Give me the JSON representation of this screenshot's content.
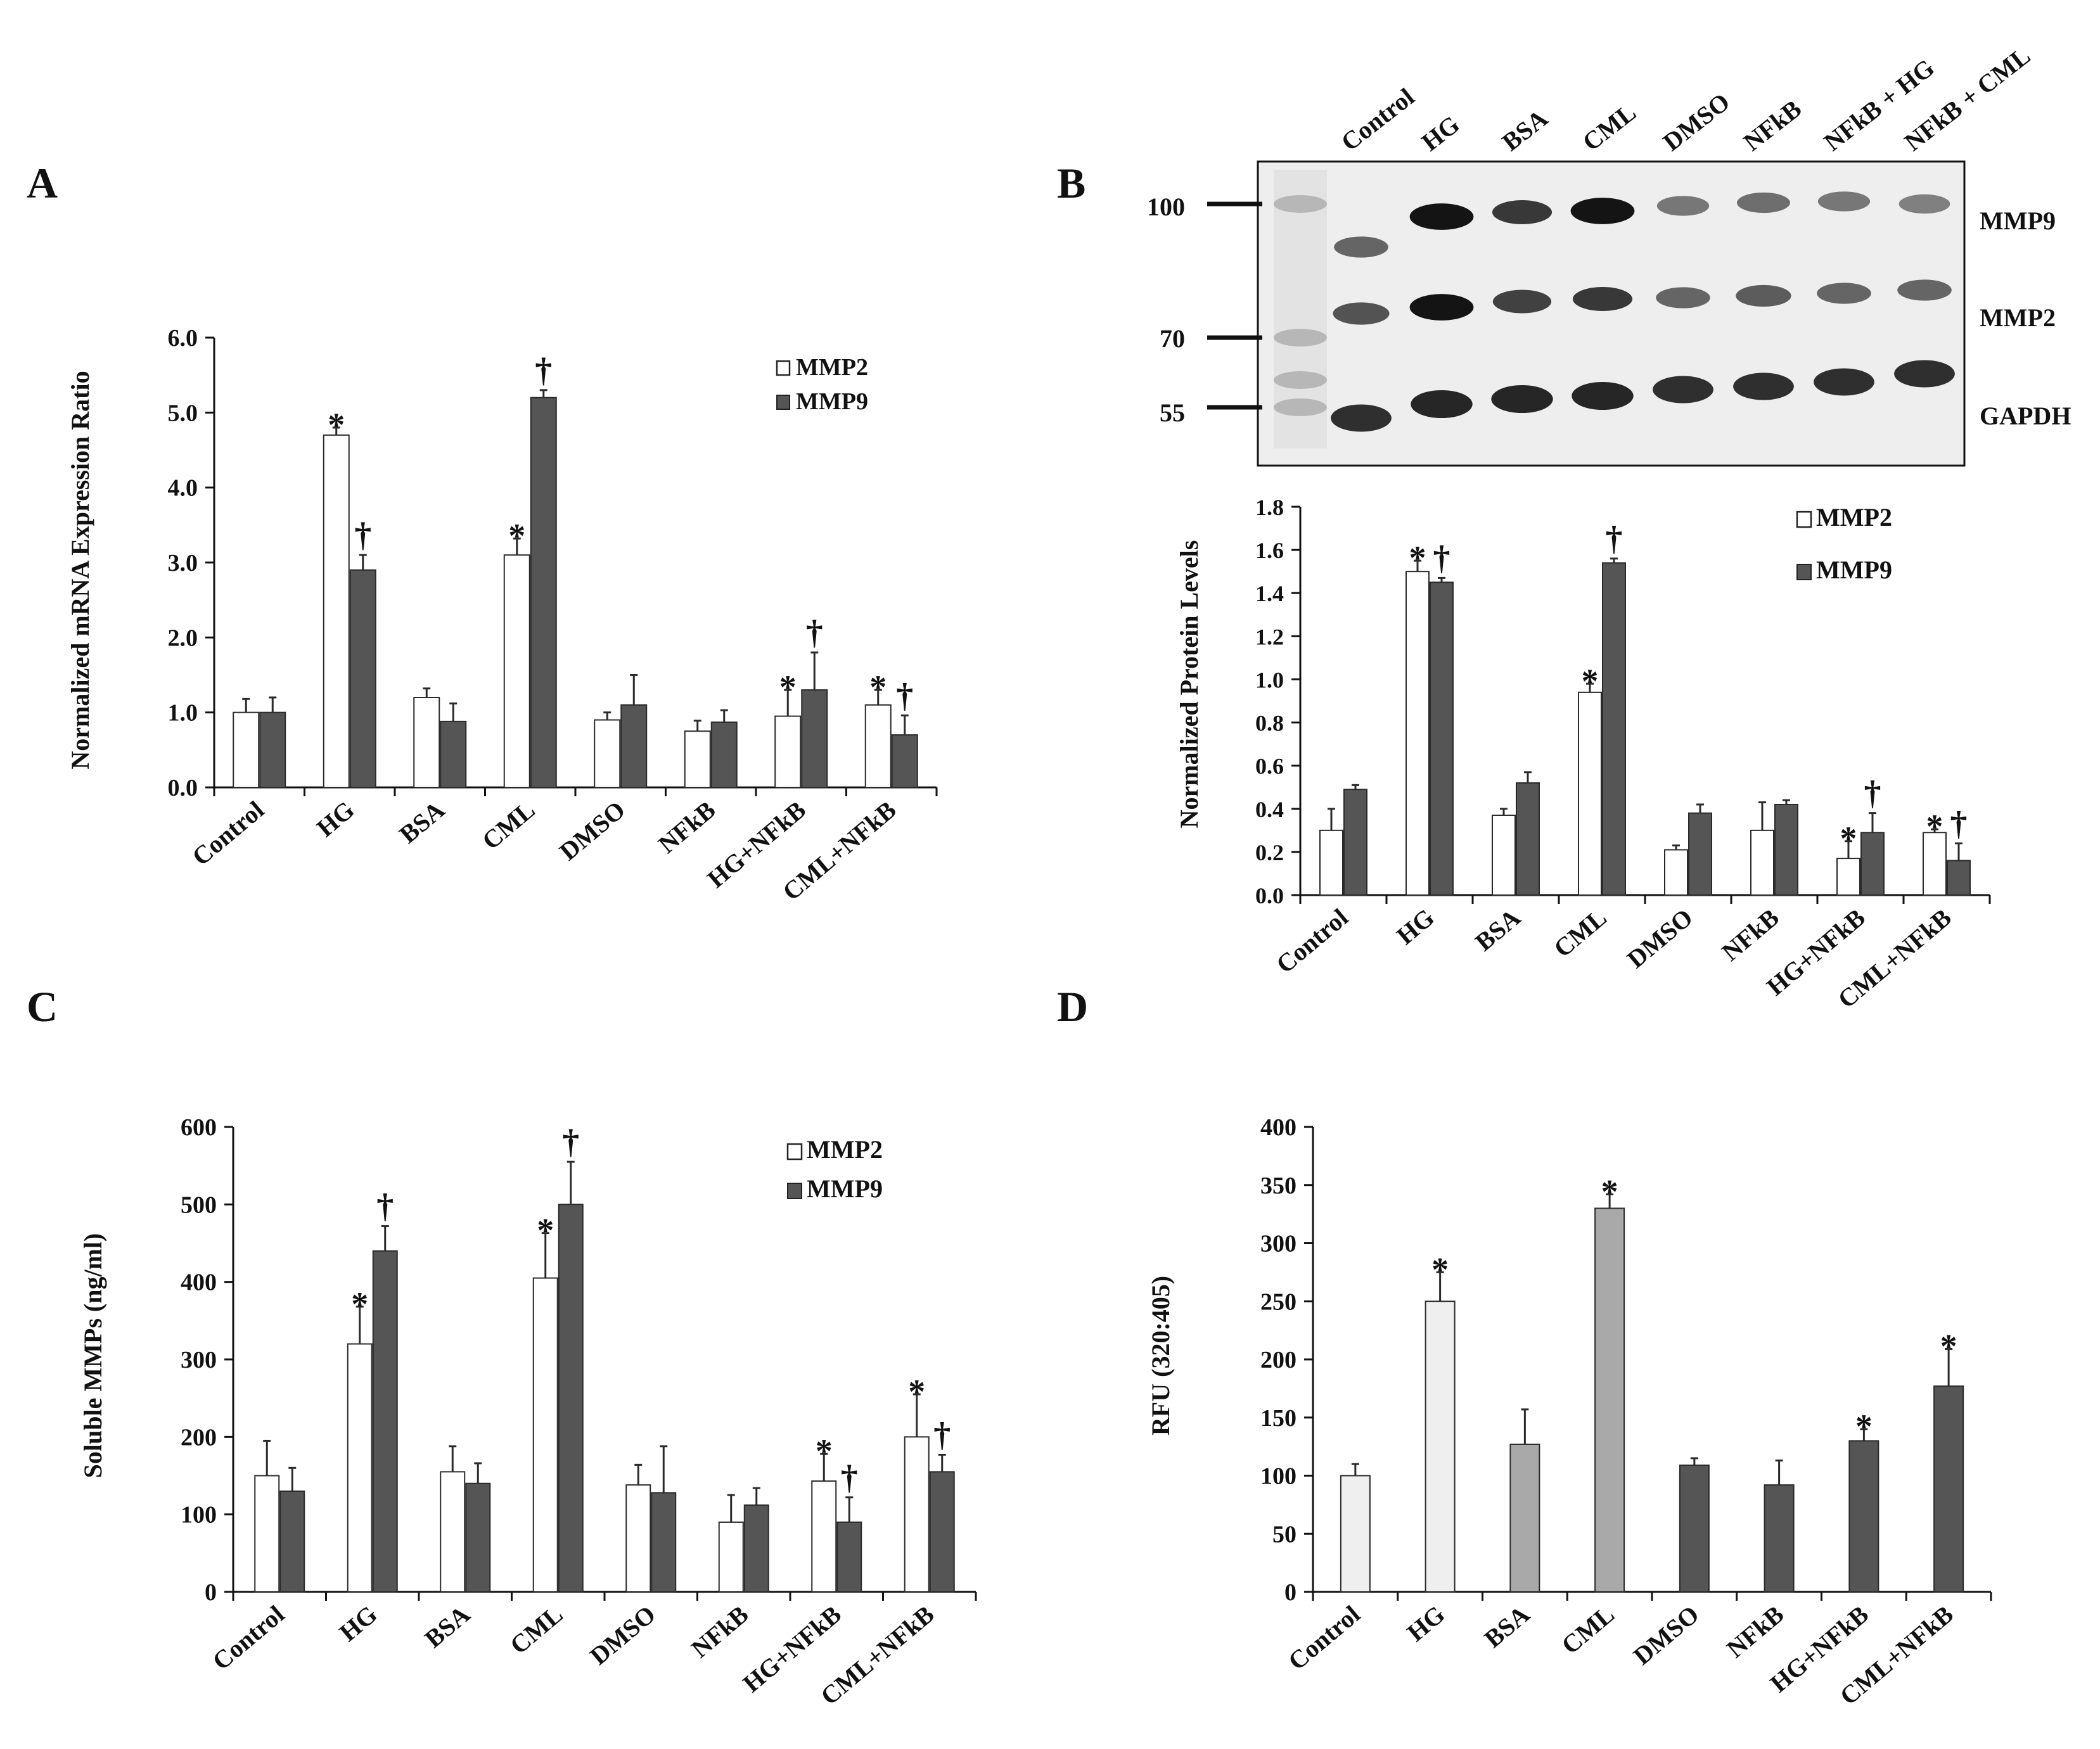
{
  "colors": {
    "white_bar": "#ffffff",
    "dark_bar": "#555555",
    "light_bar": "#efefef",
    "mid_bar": "#a9a9a9",
    "axis": "#111111"
  },
  "panels": {
    "a": "A",
    "b": "B",
    "c": "C",
    "d": "D"
  },
  "blot": {
    "lanes": [
      "Control",
      "HG",
      "BSA",
      "CML",
      "DMSO",
      "NFkB",
      "NFkB + HG",
      "NFkB + CML"
    ],
    "markers": [
      "100",
      "70",
      "55"
    ],
    "bands": [
      "MMP9",
      "MMP2",
      "GAPDH"
    ],
    "intensity": {
      "MMP9": [
        0.55,
        1.0,
        0.8,
        1.0,
        0.45,
        0.5,
        0.45,
        0.4
      ],
      "MMP2": [
        0.65,
        1.0,
        0.75,
        0.8,
        0.55,
        0.6,
        0.55,
        0.55
      ],
      "GAPDH": [
        0.85,
        0.9,
        0.9,
        0.9,
        0.85,
        0.85,
        0.85,
        0.85
      ]
    }
  },
  "chart_data": [
    {
      "id": "A",
      "type": "bar",
      "title": "",
      "xlabel": "",
      "ylabel": "Normalized mRNA Expression Ratio",
      "ylim": [
        0,
        6
      ],
      "yticks": [
        "0.0",
        "1.0",
        "2.0",
        "3.0",
        "4.0",
        "5.0",
        "6.0"
      ],
      "categories": [
        "Control",
        "HG",
        "BSA",
        "CML",
        "DMSO",
        "NFkB",
        "HG+NFkB",
        "CML+NFkB"
      ],
      "legend": {
        "placement": "top-right",
        "entries": [
          "MMP2",
          "MMP9"
        ]
      },
      "series": [
        {
          "name": "MMP2",
          "color": "white",
          "values": [
            1.0,
            4.7,
            1.2,
            3.1,
            0.9,
            0.75,
            0.95,
            1.1
          ],
          "errors": [
            0.18,
            0.1,
            0.12,
            0.22,
            0.1,
            0.14,
            0.35,
            0.2
          ],
          "marks": [
            "",
            "*",
            "",
            "*",
            "",
            "",
            "*",
            "*"
          ]
        },
        {
          "name": "MMP9",
          "color": "dark",
          "values": [
            1.0,
            2.9,
            0.88,
            5.2,
            1.1,
            0.87,
            1.3,
            0.7
          ],
          "errors": [
            0.2,
            0.2,
            0.24,
            0.1,
            0.4,
            0.16,
            0.5,
            0.26
          ],
          "marks": [
            "",
            "†",
            "",
            "†",
            "",
            "",
            "†",
            "†"
          ]
        }
      ]
    },
    {
      "id": "B",
      "type": "bar",
      "title": "",
      "xlabel": "",
      "ylabel": "Normalized Protein Levels",
      "ylim": [
        0,
        1.8
      ],
      "yticks": [
        "0.0",
        "0.2",
        "0.4",
        "0.6",
        "0.8",
        "1.0",
        "1.2",
        "1.4",
        "1.6",
        "1.8"
      ],
      "categories": [
        "Control",
        "HG",
        "BSA",
        "CML",
        "DMSO",
        "NFkB",
        "HG+NFkB",
        "CML+NFkB"
      ],
      "legend": {
        "placement": "top-right",
        "entries": [
          "MMP2",
          "MMP9"
        ]
      },
      "series": [
        {
          "name": "MMP2",
          "color": "white",
          "values": [
            0.3,
            1.5,
            0.37,
            0.94,
            0.21,
            0.3,
            0.17,
            0.29
          ],
          "errors": [
            0.1,
            0.05,
            0.03,
            0.04,
            0.02,
            0.13,
            0.08,
            0.015
          ],
          "marks": [
            "",
            "*",
            "",
            "*",
            "",
            "",
            "*",
            "*"
          ]
        },
        {
          "name": "MMP9",
          "color": "dark",
          "values": [
            0.49,
            1.45,
            0.52,
            1.54,
            0.38,
            0.42,
            0.29,
            0.16
          ],
          "errors": [
            0.02,
            0.02,
            0.05,
            0.02,
            0.04,
            0.02,
            0.09,
            0.08
          ],
          "marks": [
            "",
            "†",
            "",
            "†",
            "",
            "",
            "†",
            "†"
          ]
        }
      ]
    },
    {
      "id": "C",
      "type": "bar",
      "title": "",
      "xlabel": "",
      "ylabel": "Soluble MMPs (ng/ml)",
      "ylim": [
        0,
        600
      ],
      "yticks": [
        "0",
        "100",
        "200",
        "300",
        "400",
        "500",
        "600"
      ],
      "categories": [
        "Control",
        "HG",
        "BSA",
        "CML",
        "DMSO",
        "NFkB",
        "HG+NFkB",
        "CML+NFkB"
      ],
      "legend": {
        "placement": "top-right",
        "entries": [
          "MMP2",
          "MMP9"
        ]
      },
      "series": [
        {
          "name": "MMP2",
          "color": "white",
          "values": [
            150,
            320,
            155,
            405,
            138,
            90,
            143,
            200
          ],
          "errors": [
            45,
            48,
            33,
            58,
            26,
            35,
            35,
            55
          ],
          "marks": [
            "",
            "*",
            "",
            "*",
            "",
            "",
            "*",
            "*"
          ]
        },
        {
          "name": "MMP9",
          "color": "dark",
          "values": [
            130,
            440,
            140,
            500,
            128,
            112,
            90,
            155
          ],
          "errors": [
            30,
            32,
            26,
            55,
            60,
            22,
            32,
            22
          ],
          "marks": [
            "",
            "†",
            "",
            "†",
            "",
            "",
            "†",
            "†"
          ]
        }
      ]
    },
    {
      "id": "D",
      "type": "bar",
      "title": "",
      "xlabel": "",
      "ylabel": "RFU (320:405)",
      "ylim": [
        0,
        400
      ],
      "yticks": [
        "0",
        "50",
        "100",
        "150",
        "200",
        "250",
        "300",
        "350",
        "400"
      ],
      "categories": [
        "Control",
        "HG",
        "BSA",
        "CML",
        "DMSO",
        "NFkB",
        "HG+NFkB",
        "CML+NFkB"
      ],
      "series": [
        {
          "name": "RFU",
          "values": [
            100,
            250,
            127,
            330,
            109,
            92,
            130,
            177
          ],
          "errors": [
            10,
            25,
            30,
            12,
            6,
            21,
            10,
            32
          ],
          "fills": [
            "light",
            "light",
            "mid",
            "mid",
            "dark",
            "dark",
            "dark",
            "dark"
          ],
          "marks": [
            "",
            "*",
            "",
            "*",
            "",
            "",
            "*",
            "*"
          ]
        }
      ]
    }
  ]
}
